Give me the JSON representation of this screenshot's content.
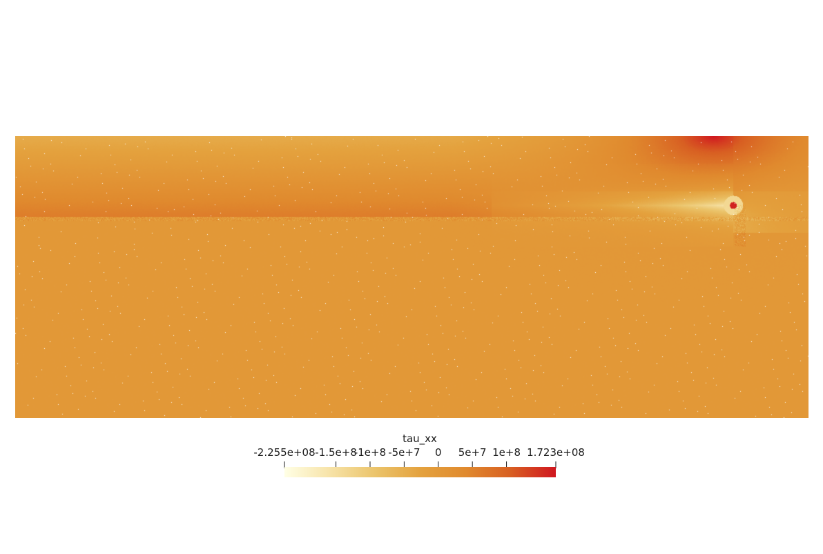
{
  "chart_data": {
    "type": "heatmap",
    "field_name": "tau_xx",
    "colorbar": {
      "title": "tau_xx",
      "range": [
        -225500000,
        172300000
      ],
      "ticks": [
        {
          "value": -225500000,
          "label": "-2.255e+08"
        },
        {
          "value": -150000000,
          "label": "-1.5e+8"
        },
        {
          "value": -100000000,
          "label": "-1e+8"
        },
        {
          "value": -50000000,
          "label": "-5e+7"
        },
        {
          "value": 0,
          "label": "0"
        },
        {
          "value": 50000000,
          "label": "5e+7"
        },
        {
          "value": 100000000,
          "label": "1e+8"
        },
        {
          "value": 172300000,
          "label": "1.723e+08"
        }
      ],
      "colormap": [
        "#ffffe5",
        "#f7e3a8",
        "#ebc46b",
        "#e4a23e",
        "#e08a2e",
        "#d85f22",
        "#d0161f"
      ]
    },
    "features": {
      "background_value": 0,
      "band_above_value": 60000000,
      "crack_tip_min_value": -225500000,
      "top_right_peak_value": 172300000
    }
  }
}
